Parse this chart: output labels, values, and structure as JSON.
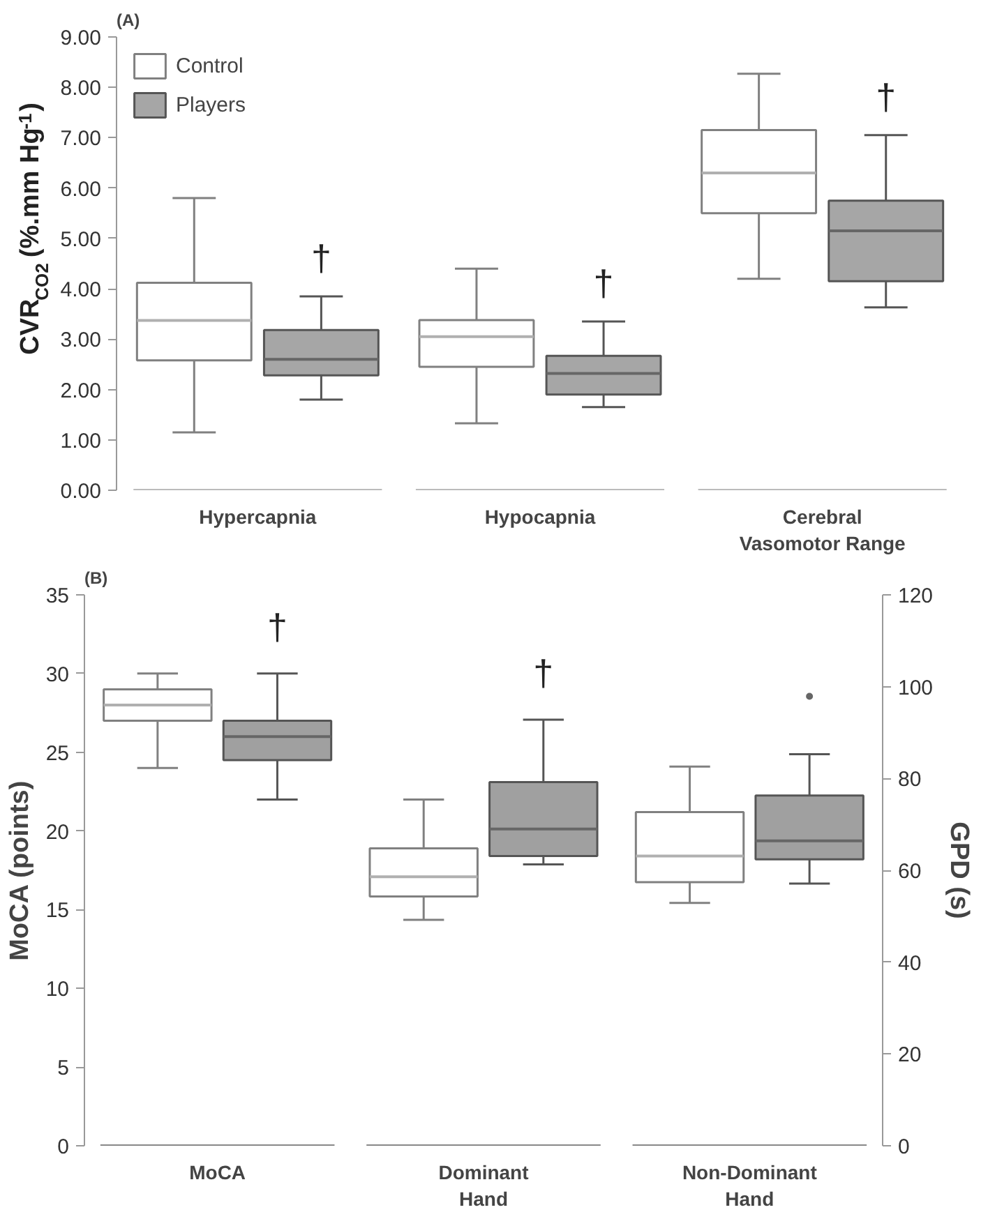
{
  "chart_data": [
    {
      "type": "box",
      "title": "(A)",
      "ylabel": "CVR$_{CO2}$ (%.mm Hg$^{-1}$)",
      "categories": [
        "Hypercapnia",
        "Hypocapnia",
        "Cerebral\nVasomotor Range"
      ],
      "series": [
        {
          "name": "Control",
          "color": "#ffffff",
          "boxes": [
            {
              "low": 1.15,
              "q1": 2.58,
              "median": 3.37,
              "q3": 4.12,
              "high": 5.8
            },
            {
              "low": 1.33,
              "q1": 2.45,
              "median": 3.05,
              "q3": 3.38,
              "high": 4.4
            },
            {
              "low": 4.2,
              "q1": 5.5,
              "median": 6.3,
              "q3": 7.15,
              "high": 8.27
            }
          ]
        },
        {
          "name": "Players",
          "color": "#a6a6a6",
          "boxes": [
            {
              "low": 1.8,
              "q1": 2.28,
              "median": 2.6,
              "q3": 3.18,
              "high": 3.85
            },
            {
              "low": 1.65,
              "q1": 1.9,
              "median": 2.32,
              "q3": 2.67,
              "high": 3.35
            },
            {
              "low": 3.63,
              "q1": 4.15,
              "median": 5.15,
              "q3": 5.75,
              "high": 7.05
            }
          ]
        }
      ],
      "ylim": [
        0,
        9
      ],
      "yticks": [
        {
          "value": 0,
          "label": "0.00"
        },
        {
          "value": 1,
          "label": "1.00"
        },
        {
          "value": 2,
          "label": "2.00"
        },
        {
          "value": 3,
          "label": "3.00"
        },
        {
          "value": 4,
          "label": "4.00"
        },
        {
          "value": 5,
          "label": "5.00"
        },
        {
          "value": 6,
          "label": "6.00"
        },
        {
          "value": 7,
          "label": "7.00"
        },
        {
          "value": 8,
          "label": "8.00"
        },
        {
          "value": 9,
          "label": "9.00"
        }
      ],
      "legend": "top left",
      "annotations": [
        "†",
        "†",
        "†"
      ]
    },
    {
      "type": "box",
      "title": "(B)",
      "ylabel": "MoCA (points)",
      "y2label": "GPD (s)",
      "categories": [
        "MoCA",
        "Dominant\nHand",
        "Non-Dominant\nHand"
      ],
      "series": [
        {
          "color": "#ffffff",
          "boxes": [
            {
              "low": 24,
              "q1": 27,
              "median": 28,
              "q3": 29,
              "high": 30
            },
            null,
            null
          ]
        },
        {
          "color": "#a0a0a0",
          "boxes": [
            {
              "low": 22,
              "q1": 24.5,
              "median": 26,
              "q3": 27,
              "high": 30
            },
            null,
            null
          ]
        },
        {
          "color": "#ffffff",
          "axis": "y2",
          "boxes": [
            null,
            {
              "low": 49.2,
              "q1": 54.3,
              "median": 58.6,
              "q3": 64.8,
              "high": 75.4
            },
            {
              "low": 52.9,
              "q1": 57.4,
              "median": 63.1,
              "q3": 72.7,
              "high": 82.6
            }
          ]
        },
        {
          "color": "#a0a0a0",
          "axis": "y2",
          "boxes": [
            null,
            {
              "low": 61.3,
              "q1": 63.1,
              "median": 69,
              "q3": 79.2,
              "high": 92.8
            },
            {
              "low": 57.1,
              "q1": 62.4,
              "median": 66.4,
              "q3": 76.3,
              "high": 85.3,
              "outliers": [
                97.9
              ]
            }
          ]
        }
      ],
      "ylim": [
        0,
        35
      ],
      "yticks": [
        0,
        5,
        10,
        15,
        20,
        25,
        30,
        35
      ],
      "y2lim": [
        0,
        120
      ],
      "y2ticks": [
        0,
        20,
        40,
        60,
        80,
        100,
        120
      ],
      "annotations": [
        "†",
        "†"
      ]
    }
  ]
}
